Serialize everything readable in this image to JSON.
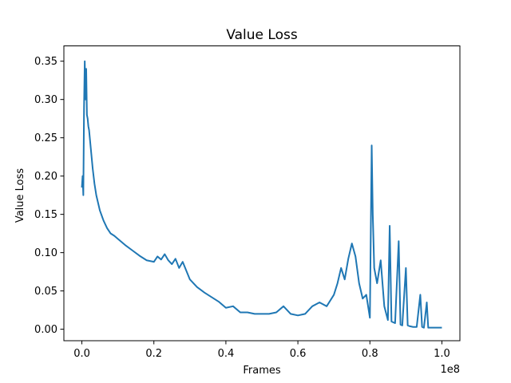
{
  "chart_data": {
    "type": "line",
    "title": "Value Loss",
    "xlabel": "Frames",
    "ylabel": "Value Loss",
    "x_offset_label": "1e8",
    "xlim": [
      -0.05,
      1.05
    ],
    "ylim": [
      -0.015,
      0.37
    ],
    "x_ticks": [
      0.0,
      0.2,
      0.4,
      0.6,
      0.8,
      1.0
    ],
    "x_tick_labels": [
      "0.0",
      "0.2",
      "0.4",
      "0.6",
      "0.8",
      "1.0"
    ],
    "y_ticks": [
      0.0,
      0.05,
      0.1,
      0.15,
      0.2,
      0.25,
      0.3,
      0.35
    ],
    "y_tick_labels": [
      "0.00",
      "0.05",
      "0.10",
      "0.15",
      "0.20",
      "0.25",
      "0.30",
      "0.35"
    ],
    "grid": false,
    "legend": "none",
    "series": [
      {
        "color": "#1f77b4",
        "x": [
          0.0,
          0.002,
          0.004,
          0.006,
          0.008,
          0.01,
          0.012,
          0.014,
          0.016,
          0.018,
          0.02,
          0.025,
          0.03,
          0.035,
          0.04,
          0.05,
          0.06,
          0.07,
          0.08,
          0.09,
          0.1,
          0.12,
          0.14,
          0.16,
          0.18,
          0.2,
          0.21,
          0.22,
          0.23,
          0.24,
          0.25,
          0.26,
          0.27,
          0.28,
          0.3,
          0.32,
          0.34,
          0.36,
          0.38,
          0.4,
          0.42,
          0.44,
          0.46,
          0.48,
          0.5,
          0.52,
          0.54,
          0.56,
          0.58,
          0.6,
          0.62,
          0.64,
          0.66,
          0.68,
          0.7,
          0.71,
          0.72,
          0.73,
          0.74,
          0.75,
          0.76,
          0.77,
          0.78,
          0.79,
          0.8,
          0.805,
          0.808,
          0.812,
          0.82,
          0.83,
          0.84,
          0.85,
          0.855,
          0.86,
          0.87,
          0.88,
          0.885,
          0.89,
          0.9,
          0.905,
          0.91,
          0.92,
          0.93,
          0.94,
          0.945,
          0.95,
          0.958,
          0.962,
          0.97,
          0.98,
          0.99,
          1.0
        ],
        "y": [
          0.185,
          0.2,
          0.175,
          0.29,
          0.35,
          0.3,
          0.34,
          0.28,
          0.275,
          0.265,
          0.26,
          0.235,
          0.21,
          0.19,
          0.175,
          0.155,
          0.142,
          0.132,
          0.125,
          0.122,
          0.118,
          0.11,
          0.103,
          0.096,
          0.09,
          0.088,
          0.095,
          0.091,
          0.098,
          0.09,
          0.085,
          0.092,
          0.08,
          0.088,
          0.065,
          0.055,
          0.048,
          0.042,
          0.036,
          0.028,
          0.03,
          0.022,
          0.022,
          0.02,
          0.02,
          0.02,
          0.022,
          0.03,
          0.02,
          0.018,
          0.02,
          0.03,
          0.035,
          0.03,
          0.045,
          0.06,
          0.08,
          0.065,
          0.092,
          0.112,
          0.095,
          0.06,
          0.04,
          0.045,
          0.015,
          0.24,
          0.15,
          0.08,
          0.06,
          0.09,
          0.03,
          0.012,
          0.135,
          0.01,
          0.008,
          0.115,
          0.006,
          0.005,
          0.08,
          0.005,
          0.004,
          0.003,
          0.003,
          0.045,
          0.003,
          0.002,
          0.035,
          0.002,
          0.002,
          0.002,
          0.002,
          0.002
        ]
      }
    ]
  }
}
